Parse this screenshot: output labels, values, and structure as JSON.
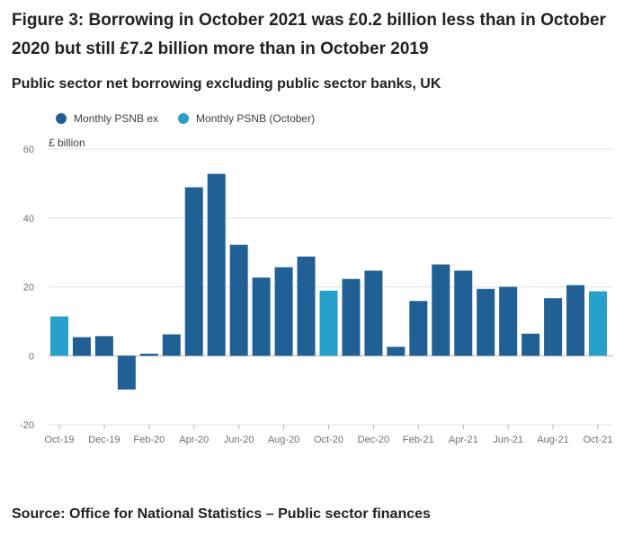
{
  "title": "Figure 3: Borrowing in October 2021 was £0.2 billion less than in October 2020 but still £7.2 billion more than in October 2019",
  "subtitle": "Public sector net borrowing excluding public sector banks, UK",
  "source": "Source: Office for National Statistics – Public sector finances",
  "colors": {
    "ex": "#206095",
    "october": "#27a0cc",
    "grid": "#e0e0e0",
    "text": "#707070"
  },
  "chart_data": {
    "type": "bar",
    "ylabel": "£ billion",
    "ylim": [
      -20,
      60
    ],
    "yticks": [
      -20,
      0,
      20,
      40,
      60
    ],
    "legend": [
      {
        "name": "Monthly PSNB ex",
        "color": "#206095"
      },
      {
        "name": "Monthly PSNB (October)",
        "color": "#27a0cc"
      }
    ],
    "categories": [
      "Oct-19",
      "Nov-19",
      "Dec-19",
      "Jan-20",
      "Feb-20",
      "Mar-20",
      "Apr-20",
      "May-20",
      "Jun-20",
      "Jul-20",
      "Aug-20",
      "Sep-20",
      "Oct-20",
      "Nov-20",
      "Dec-20",
      "Jan-21",
      "Feb-21",
      "Mar-21",
      "Apr-21",
      "May-21",
      "Jun-21",
      "Jul-21",
      "Aug-21",
      "Sep-21",
      "Oct-21"
    ],
    "values": [
      11.4,
      5.4,
      5.7,
      -9.8,
      0.6,
      6.2,
      48.9,
      52.8,
      32.2,
      22.7,
      25.7,
      28.8,
      18.9,
      22.3,
      24.7,
      2.6,
      15.9,
      26.5,
      24.7,
      19.4,
      20.0,
      6.4,
      16.7,
      20.5,
      18.7
    ],
    "series_type": [
      "october",
      "ex",
      "ex",
      "ex",
      "ex",
      "ex",
      "ex",
      "ex",
      "ex",
      "ex",
      "ex",
      "ex",
      "october",
      "ex",
      "ex",
      "ex",
      "ex",
      "ex",
      "ex",
      "ex",
      "ex",
      "ex",
      "ex",
      "ex",
      "october"
    ],
    "xtick_labels": [
      "Oct-19",
      "Dec-19",
      "Feb-20",
      "Apr-20",
      "Jun-20",
      "Aug-20",
      "Oct-20",
      "Dec-20",
      "Feb-21",
      "Apr-21",
      "Jun-21",
      "Aug-21",
      "Oct-21"
    ]
  }
}
